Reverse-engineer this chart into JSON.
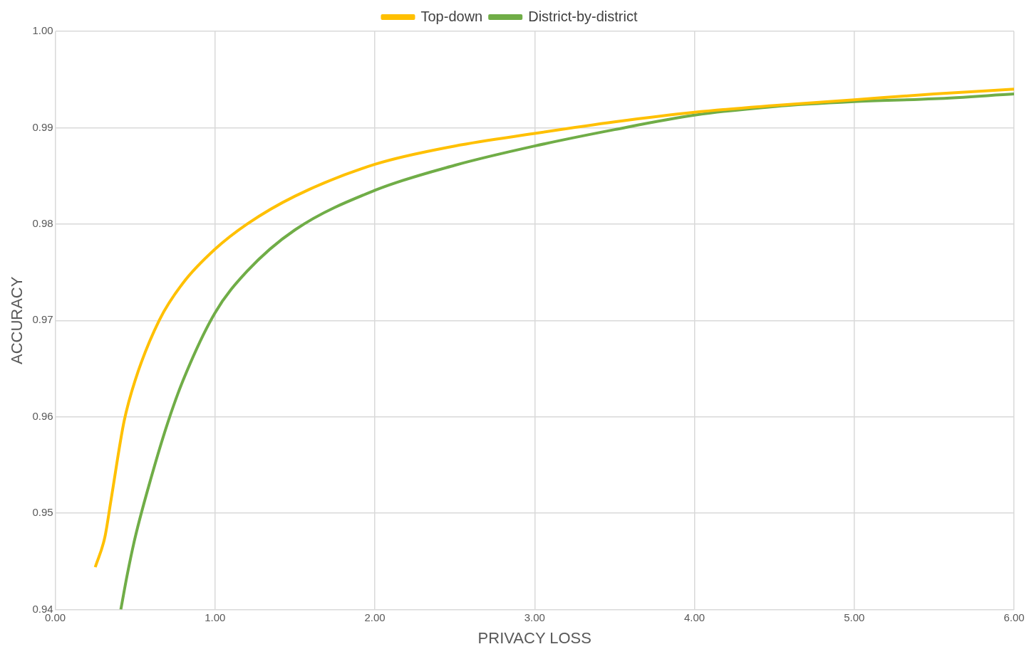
{
  "chart_data": {
    "type": "line",
    "xlabel": "PRIVACY LOSS",
    "ylabel": "ACCURACY",
    "xlim": [
      0,
      6
    ],
    "xticks": [
      {
        "value": 0,
        "label": "0.00"
      },
      {
        "value": 1,
        "label": "1.00"
      },
      {
        "value": 2,
        "label": "2.00"
      },
      {
        "value": 3,
        "label": "3.00"
      },
      {
        "value": 4,
        "label": "4.00"
      },
      {
        "value": 5,
        "label": "5.00"
      },
      {
        "value": 6,
        "label": "6.00"
      }
    ],
    "ylim": [
      0.94,
      1
    ],
    "yticks": [
      0.94,
      0.95,
      0.96,
      0.97,
      0.98,
      0.99,
      {
        "value": 1,
        "label": "1.00"
      }
    ],
    "grid": true,
    "legend": "top",
    "marker": "none",
    "line_style": "solid",
    "series": [
      {
        "name": "Top-down",
        "color": "#ffc000",
        "x": [
          0.25,
          0.31,
          0.35,
          0.43,
          0.5,
          0.65,
          0.8,
          1.0,
          1.2,
          1.5,
          2.0,
          2.5,
          3.0,
          3.5,
          4.0,
          4.5,
          5.0,
          5.5,
          6.0
        ],
        "values": [
          0.9444,
          0.9475,
          0.9515,
          0.9595,
          0.9638,
          0.97,
          0.9739,
          0.9774,
          0.98,
          0.9829,
          0.9862,
          0.9881,
          0.9894,
          0.9906,
          0.9916,
          0.9923,
          0.9929,
          0.9935,
          0.994
        ]
      },
      {
        "name": "District-by-district",
        "color": "#70ad47",
        "x": [
          0.41,
          0.45,
          0.5,
          0.6,
          0.7,
          0.8,
          1.0,
          1.2,
          1.5,
          2.0,
          2.5,
          3.0,
          3.5,
          4.0,
          4.5,
          5.0,
          5.5,
          6.0
        ],
        "values": [
          0.94,
          0.9436,
          0.9475,
          0.9537,
          0.9592,
          0.9638,
          0.9708,
          0.9751,
          0.9794,
          0.9835,
          0.9861,
          0.9881,
          0.9898,
          0.9913,
          0.9922,
          0.9927,
          0.993,
          0.9935
        ]
      }
    ]
  }
}
